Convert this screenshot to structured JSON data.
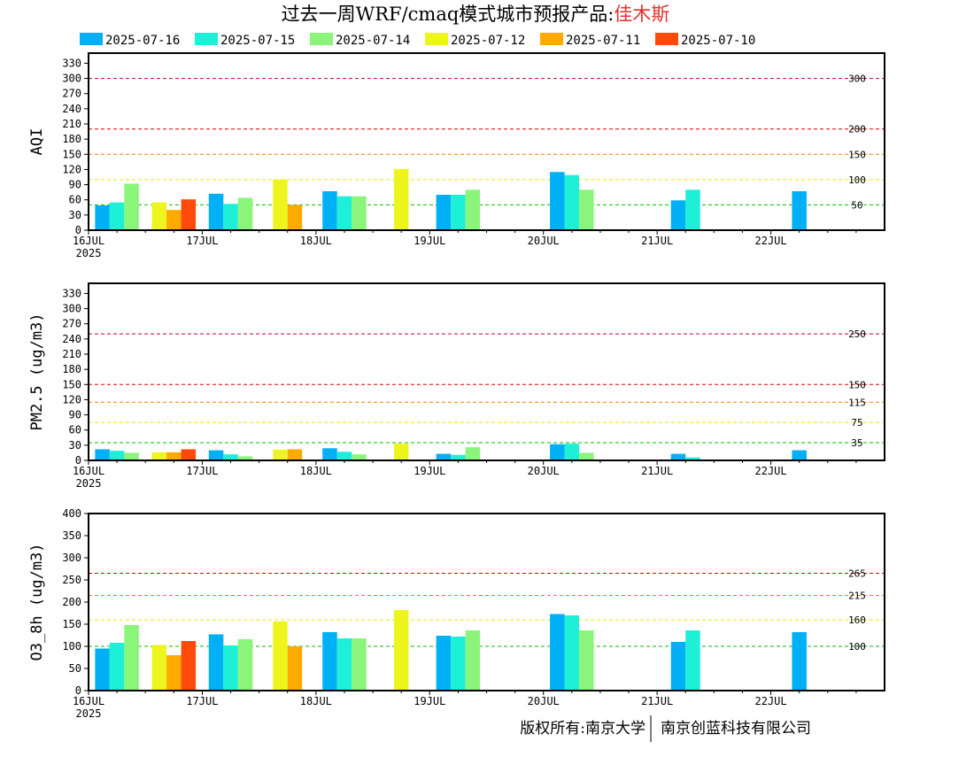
{
  "title": {
    "prefix": "过去一周WRF/cmaq模式城市预报产品:",
    "city": "佳木斯"
  },
  "colors": {
    "title": "#000000",
    "city": "#e8312a",
    "axis": "#000000"
  },
  "legend": [
    {
      "label": "2025-07-16",
      "color": "#00b0f6"
    },
    {
      "label": "2025-07-15",
      "color": "#1ef0d8"
    },
    {
      "label": "2025-07-14",
      "color": "#8af57a"
    },
    {
      "label": "2025-07-12",
      "color": "#eef51e"
    },
    {
      "label": "2025-07-11",
      "color": "#ffaa00"
    },
    {
      "label": "2025-07-10",
      "color": "#ff4a0a"
    }
  ],
  "footer": {
    "left": "版权所有:南京大学",
    "right": "南京创蓝科技有限公司"
  },
  "chart_data": [
    {
      "type": "bar",
      "ylabel": "AQI",
      "ylim": [
        0,
        350
      ],
      "yticks": [
        0,
        30,
        60,
        90,
        120,
        150,
        180,
        210,
        240,
        270,
        300,
        330
      ],
      "xlim": [
        0,
        7
      ],
      "xticks": [
        "16JUL",
        "17JUL",
        "18JUL",
        "19JUL",
        "20JUL",
        "21JUL",
        "22JUL"
      ],
      "xtick_year": "2025",
      "thresholds": [
        {
          "value": 300,
          "label": "300",
          "color": "#c0004a"
        },
        {
          "value": 200,
          "label": "200",
          "color": "#e00000"
        },
        {
          "value": 150,
          "label": "150",
          "color": "#f08000"
        },
        {
          "value": 100,
          "label": "100",
          "color": "#e8e800"
        },
        {
          "value": 50,
          "label": "50",
          "color": "#00c000"
        }
      ],
      "groups": [
        {
          "x": 0.25,
          "bars": [
            [
              "2025-07-16",
              49
            ],
            [
              "2025-07-15",
              55
            ],
            [
              "2025-07-14",
              92
            ]
          ]
        },
        {
          "x": 0.75,
          "bars": [
            [
              "2025-07-12",
              55
            ],
            [
              "2025-07-11",
              40
            ],
            [
              "2025-07-10",
              61
            ]
          ]
        },
        {
          "x": 1.25,
          "bars": [
            [
              "2025-07-16",
              72
            ],
            [
              "2025-07-15",
              52
            ],
            [
              "2025-07-14",
              64
            ]
          ]
        },
        {
          "x": 1.75,
          "bars": [
            [
              "2025-07-12",
              100
            ],
            [
              "2025-07-11",
              50
            ]
          ]
        },
        {
          "x": 2.25,
          "bars": [
            [
              "2025-07-16",
              77
            ],
            [
              "2025-07-15",
              67
            ],
            [
              "2025-07-14",
              67
            ]
          ]
        },
        {
          "x": 2.75,
          "bars": [
            [
              "2025-07-12",
              121
            ]
          ]
        },
        {
          "x": 3.25,
          "bars": [
            [
              "2025-07-16",
              70
            ],
            [
              "2025-07-15",
              70
            ],
            [
              "2025-07-14",
              80
            ]
          ]
        },
        {
          "x": 4.25,
          "bars": [
            [
              "2025-07-16",
              115
            ],
            [
              "2025-07-15",
              109
            ],
            [
              "2025-07-14",
              80
            ]
          ]
        },
        {
          "x": 5.25,
          "bars": [
            [
              "2025-07-16",
              59
            ],
            [
              "2025-07-15",
              80
            ]
          ]
        },
        {
          "x": 6.25,
          "bars": [
            [
              "2025-07-16",
              77
            ]
          ]
        }
      ]
    },
    {
      "type": "bar",
      "ylabel": "PM2.5 (ug/m3)",
      "ylim": [
        0,
        350
      ],
      "yticks": [
        0,
        30,
        60,
        90,
        120,
        150,
        180,
        210,
        240,
        270,
        300,
        330
      ],
      "xlim": [
        0,
        7
      ],
      "xticks": [
        "16JUL",
        "17JUL",
        "18JUL",
        "19JUL",
        "20JUL",
        "21JUL",
        "22JUL"
      ],
      "xtick_year": "2025",
      "thresholds": [
        {
          "value": 250,
          "label": "250",
          "color": "#c0004a"
        },
        {
          "value": 150,
          "label": "150",
          "color": "#e00000"
        },
        {
          "value": 115,
          "label": "115",
          "color": "#f08000"
        },
        {
          "value": 75,
          "label": "75",
          "color": "#e8e800"
        },
        {
          "value": 35,
          "label": "35",
          "color": "#00c000"
        }
      ],
      "groups": [
        {
          "x": 0.25,
          "bars": [
            [
              "2025-07-16",
              22
            ],
            [
              "2025-07-15",
              19
            ],
            [
              "2025-07-14",
              15
            ]
          ]
        },
        {
          "x": 0.75,
          "bars": [
            [
              "2025-07-12",
              16
            ],
            [
              "2025-07-11",
              16
            ],
            [
              "2025-07-10",
              22
            ]
          ]
        },
        {
          "x": 1.25,
          "bars": [
            [
              "2025-07-16",
              20
            ],
            [
              "2025-07-15",
              12
            ],
            [
              "2025-07-14",
              8
            ]
          ]
        },
        {
          "x": 1.75,
          "bars": [
            [
              "2025-07-12",
              21
            ],
            [
              "2025-07-11",
              22
            ]
          ]
        },
        {
          "x": 2.25,
          "bars": [
            [
              "2025-07-16",
              24
            ],
            [
              "2025-07-15",
              17
            ],
            [
              "2025-07-14",
              12
            ]
          ]
        },
        {
          "x": 2.75,
          "bars": [
            [
              "2025-07-12",
              33
            ]
          ]
        },
        {
          "x": 3.25,
          "bars": [
            [
              "2025-07-16",
              13
            ],
            [
              "2025-07-15",
              11
            ],
            [
              "2025-07-14",
              26
            ]
          ]
        },
        {
          "x": 4.25,
          "bars": [
            [
              "2025-07-16",
              32
            ],
            [
              "2025-07-15",
              33
            ],
            [
              "2025-07-14",
              15
            ]
          ]
        },
        {
          "x": 5.25,
          "bars": [
            [
              "2025-07-16",
              13
            ],
            [
              "2025-07-15",
              6
            ]
          ]
        },
        {
          "x": 6.25,
          "bars": [
            [
              "2025-07-16",
              20
            ]
          ]
        }
      ]
    },
    {
      "type": "bar",
      "ylabel": "O3_8h (ug/m3)",
      "ylim": [
        0,
        400
      ],
      "yticks": [
        0,
        50,
        100,
        150,
        200,
        250,
        300,
        350,
        400
      ],
      "xlim": [
        0,
        7
      ],
      "xticks": [
        "16JUL",
        "17JUL",
        "18JUL",
        "19JUL",
        "20JUL",
        "21JUL",
        "22JUL"
      ],
      "xtick_year": "2025",
      "thresholds": [
        {
          "value": 265,
          "label": "265",
          "color": "#e00000"
        },
        {
          "value": 215,
          "label": "215",
          "color": "#f08000"
        },
        {
          "value": 160,
          "label": "160",
          "color": "#e8e800"
        },
        {
          "value": 100,
          "label": "100",
          "color": "#00c000"
        }
      ],
      "groups": [
        {
          "x": 0.25,
          "bars": [
            [
              "2025-07-16",
              95
            ],
            [
              "2025-07-15",
              108
            ],
            [
              "2025-07-14",
              148
            ]
          ]
        },
        {
          "x": 0.75,
          "bars": [
            [
              "2025-07-12",
              103
            ],
            [
              "2025-07-11",
              80
            ],
            [
              "2025-07-10",
              112
            ]
          ]
        },
        {
          "x": 1.25,
          "bars": [
            [
              "2025-07-16",
              127
            ],
            [
              "2025-07-15",
              102
            ],
            [
              "2025-07-14",
              116
            ]
          ]
        },
        {
          "x": 1.75,
          "bars": [
            [
              "2025-07-12",
              156
            ],
            [
              "2025-07-11",
              100
            ]
          ]
        },
        {
          "x": 2.25,
          "bars": [
            [
              "2025-07-16",
              132
            ],
            [
              "2025-07-15",
              118
            ],
            [
              "2025-07-14",
              118
            ]
          ]
        },
        {
          "x": 2.75,
          "bars": [
            [
              "2025-07-12",
              182
            ]
          ]
        },
        {
          "x": 3.25,
          "bars": [
            [
              "2025-07-16",
              124
            ],
            [
              "2025-07-15",
              122
            ],
            [
              "2025-07-14",
              136
            ]
          ]
        },
        {
          "x": 4.25,
          "bars": [
            [
              "2025-07-16",
              173
            ],
            [
              "2025-07-15",
              170
            ],
            [
              "2025-07-14",
              136
            ]
          ]
        },
        {
          "x": 5.25,
          "bars": [
            [
              "2025-07-16",
              110
            ],
            [
              "2025-07-15",
              136
            ]
          ]
        },
        {
          "x": 6.25,
          "bars": [
            [
              "2025-07-16",
              132
            ]
          ]
        }
      ]
    }
  ]
}
